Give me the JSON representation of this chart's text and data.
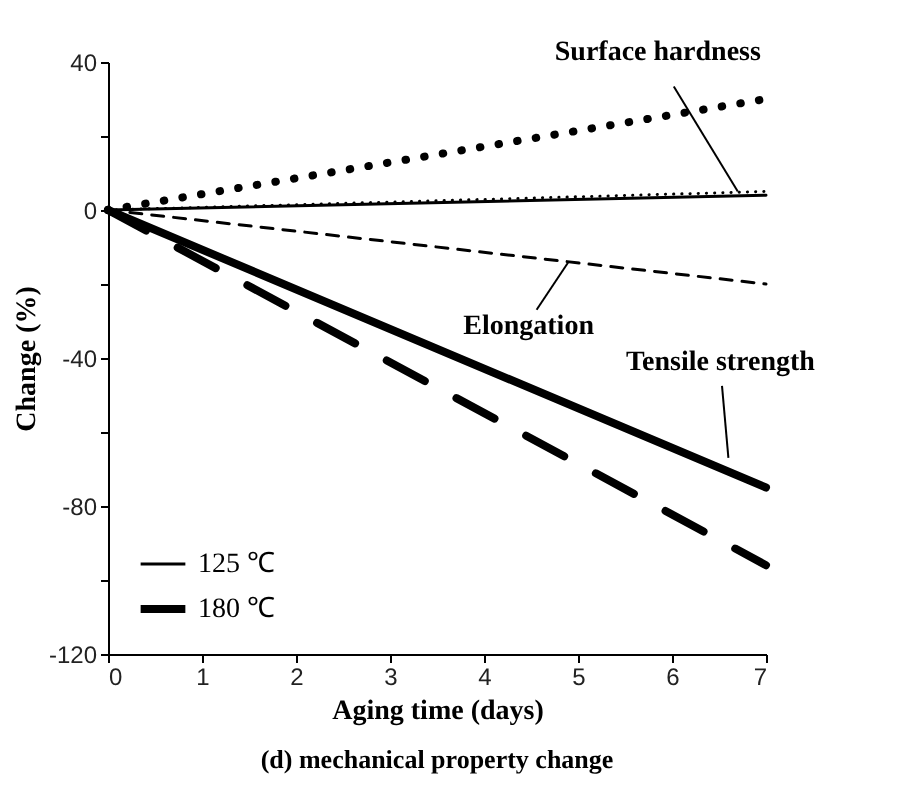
{
  "chart_data": {
    "type": "line",
    "title": "(d) mechanical property change",
    "xlabel": "Aging time (days)",
    "ylabel": "Change (%)",
    "x": [
      0,
      7
    ],
    "series": [
      {
        "color": "#000000",
        "line_style": "dotted",
        "values": [
          0,
          5
        ]
      },
      {
        "color": "#000000",
        "line_style": "dotted",
        "values": [
          0,
          30
        ]
      },
      {
        "name": "125 ℃",
        "color": "#000000",
        "line_style": "solid",
        "values": [
          0,
          4
        ]
      },
      {
        "name": "180 ℃",
        "color": "#000000",
        "line_style": "solid",
        "values": [
          0,
          -75
        ]
      },
      {
        "color": "#000000",
        "line_style": "dashed",
        "values": [
          0,
          -20
        ]
      },
      {
        "color": "#000000",
        "line_style": "dashed",
        "values": [
          0,
          -96
        ]
      }
    ],
    "annotations": [
      {
        "text": "Surface hardness",
        "x": 6.7,
        "y": 5
      },
      {
        "text": "Elongation",
        "x": 4.9,
        "y": -14
      },
      {
        "text": "Tensile strength",
        "x": 6.6,
        "y": -67
      }
    ],
    "xlim": [
      0,
      7
    ],
    "xticks": [
      0,
      1,
      2,
      3,
      4,
      5,
      6,
      7
    ],
    "ylim": [
      -120,
      40
    ],
    "yticks": [
      -120,
      {
        "value": -100,
        "label": null
      },
      -80,
      {
        "value": -60,
        "label": null
      },
      -40,
      {
        "value": -20,
        "label": null
      },
      0,
      {
        "value": 20,
        "label": null
      },
      40
    ],
    "grid": false,
    "legend": "bottom left",
    "marker": "none"
  }
}
